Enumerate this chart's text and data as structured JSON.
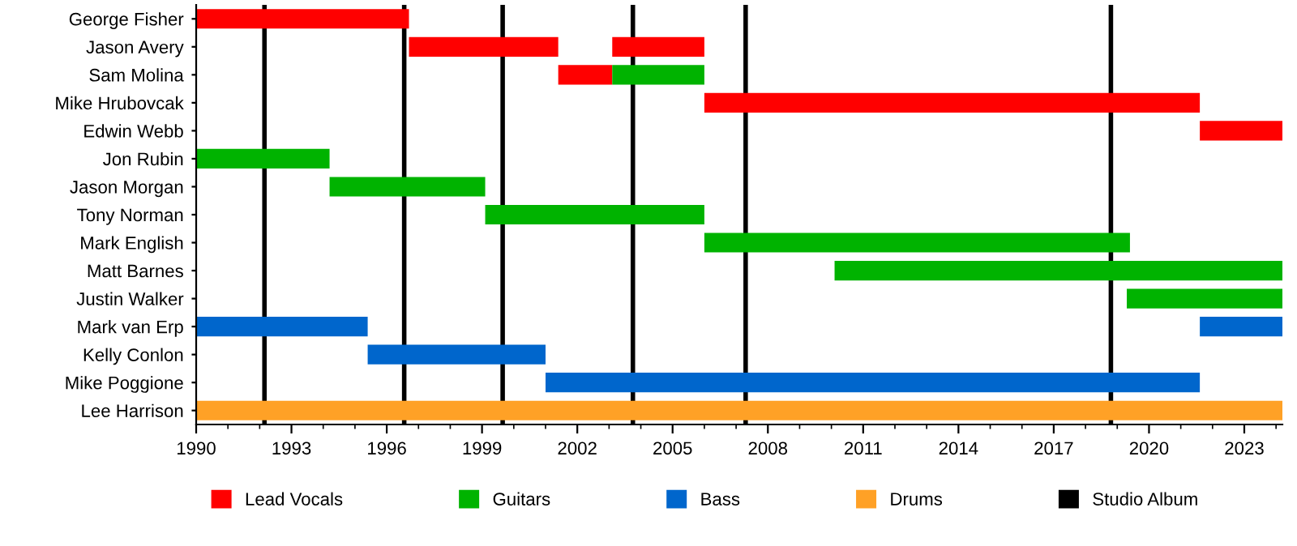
{
  "chart_data": {
    "type": "bar",
    "orientation": "horizontal",
    "categories": [
      "George Fisher",
      "Jason Avery",
      "Sam Molina",
      "Mike Hrubovcak",
      "Edwin Webb",
      "Jon Rubin",
      "Jason Morgan",
      "Tony Norman",
      "Mark English",
      "Matt Barnes",
      "Justin Walker",
      "Mark van Erp",
      "Kelly Conlon",
      "Mike Poggione",
      "Lee Harrison"
    ],
    "series": [
      {
        "name": "Lead Vocals",
        "color": "#ff0000",
        "base": [
          1990,
          1996.7,
          2001.4,
          2006.0,
          2021.6,
          null,
          null,
          null,
          null,
          null,
          null,
          null,
          null,
          null,
          null
        ],
        "values": [
          6.7,
          4.7,
          1.7,
          15.6,
          2.6,
          null,
          null,
          null,
          null,
          null,
          null,
          null,
          null,
          null,
          null
        ]
      },
      {
        "color": "#ff0000",
        "base": [
          null,
          2003.1,
          null,
          null,
          null,
          null,
          null,
          null,
          null,
          null,
          null,
          null,
          null,
          null,
          null
        ],
        "values": [
          null,
          2.9,
          null,
          null,
          null,
          null,
          null,
          null,
          null,
          null,
          null,
          null,
          null,
          null,
          null
        ]
      },
      {
        "name": "Guitars",
        "color": "#00b300",
        "base": [
          null,
          null,
          2003.1,
          null,
          null,
          1990,
          1994.2,
          1999.1,
          2006.0,
          2010.1,
          2019.3,
          null,
          null,
          null,
          null
        ],
        "values": [
          null,
          null,
          2.9,
          null,
          null,
          4.2,
          4.9,
          6.9,
          13.4,
          14.1,
          4.9,
          null,
          null,
          null,
          null
        ]
      },
      {
        "name": "Bass",
        "color": "#0066cc",
        "base": [
          null,
          null,
          null,
          null,
          null,
          null,
          null,
          null,
          null,
          null,
          null,
          1990,
          1995.4,
          2001.0,
          null
        ],
        "values": [
          null,
          null,
          null,
          null,
          null,
          null,
          null,
          null,
          null,
          null,
          null,
          5.4,
          5.6,
          20.6,
          null
        ]
      },
      {
        "color": "#0066cc",
        "base": [
          null,
          null,
          null,
          null,
          null,
          null,
          null,
          null,
          null,
          null,
          null,
          2021.6,
          null,
          null,
          null
        ],
        "values": [
          null,
          null,
          null,
          null,
          null,
          null,
          null,
          null,
          null,
          null,
          null,
          2.6,
          null,
          null,
          null
        ]
      },
      {
        "name": "Drums",
        "color": "#ffa126",
        "base": [
          null,
          null,
          null,
          null,
          null,
          null,
          null,
          null,
          null,
          null,
          null,
          null,
          null,
          null,
          1990
        ],
        "values": [
          null,
          null,
          null,
          null,
          null,
          null,
          null,
          null,
          null,
          null,
          null,
          null,
          null,
          null,
          34.2
        ]
      }
    ],
    "ref_lines": [
      {
        "axis": "x",
        "value": 1992.15,
        "label": "Studio Album",
        "color": "#000000"
      },
      {
        "axis": "x",
        "value": 1996.55,
        "color": "#000000"
      },
      {
        "axis": "x",
        "value": 1999.65,
        "color": "#000000"
      },
      {
        "axis": "x",
        "value": 2003.75,
        "color": "#000000"
      },
      {
        "axis": "x",
        "value": 2007.3,
        "color": "#000000"
      },
      {
        "axis": "x",
        "value": 2018.8,
        "color": "#000000"
      }
    ],
    "xlim": [
      1990,
      2024.2
    ],
    "xticks": [
      1990,
      1993,
      1996,
      1999,
      2002,
      2005,
      2008,
      2011,
      2014,
      2017,
      2020,
      2023
    ],
    "grid": false,
    "legend": "bottom"
  }
}
